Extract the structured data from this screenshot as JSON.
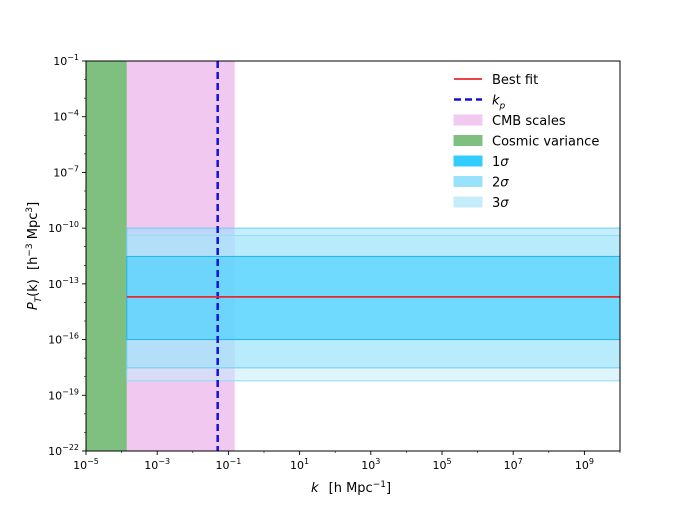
{
  "chart_data": {
    "type": "area",
    "x_scale": "log",
    "y_scale": "log",
    "xlim": [
      1e-05,
      10000000000.0
    ],
    "ylim": [
      1e-22,
      0.1
    ],
    "xlabel_html": "k  (h Mpc⁻¹)",
    "ylabel_html": "P_T(k)  (h⁻³ Mpc³)",
    "xlabel": {
      "main": "k",
      "unit": "[h Mpc",
      "sup": "−1",
      "close": "]"
    },
    "ylabel": {
      "main": "P",
      "sub": "T",
      "arg": "(k)",
      "unit": "[h",
      "sup1": "−3",
      "unit2": " Mpc",
      "sup2": "3",
      "close": "]"
    },
    "x_ticks": [
      {
        "value": 1e-05,
        "base": "10",
        "exp": "−5"
      },
      {
        "value": 0.001,
        "base": "10",
        "exp": "−3"
      },
      {
        "value": 0.1,
        "base": "10",
        "exp": "−1"
      },
      {
        "value": 10.0,
        "base": "10",
        "exp": "1"
      },
      {
        "value": 1000.0,
        "base": "10",
        "exp": "3"
      },
      {
        "value": 100000.0,
        "base": "10",
        "exp": "5"
      },
      {
        "value": 10000000.0,
        "base": "10",
        "exp": "7"
      },
      {
        "value": 1000000000.0,
        "base": "10",
        "exp": "9"
      }
    ],
    "y_ticks": [
      {
        "value": 0.1,
        "base": "10",
        "exp": "−1"
      },
      {
        "value": 0.0001,
        "base": "10",
        "exp": "−4"
      },
      {
        "value": 1e-07,
        "base": "10",
        "exp": "−7"
      },
      {
        "value": 1e-10,
        "base": "10",
        "exp": "−10"
      },
      {
        "value": 1e-13,
        "base": "10",
        "exp": "−13"
      },
      {
        "value": 1e-16,
        "base": "10",
        "exp": "−16"
      },
      {
        "value": 1e-19,
        "base": "10",
        "exp": "−19"
      },
      {
        "value": 1e-22,
        "base": "10",
        "exp": "−22"
      }
    ],
    "regions": {
      "cosmic_variance": {
        "x": [
          1e-05,
          0.00014
        ],
        "color": "#7fbf7f"
      },
      "cmb_scales": {
        "x": [
          0.00014,
          0.15
        ],
        "color": "#f0c8f0"
      }
    },
    "bands": {
      "x_start": 0.00014,
      "sigma3": {
        "y": [
          6e-19,
          4e-11
        ],
        "color": "#c4ecfb"
      },
      "sigma2": {
        "y": [
          3e-18,
          1e-10
        ],
        "color": "#98e2fb"
      },
      "sigma1": {
        "y": [
          1e-16,
          3e-12
        ],
        "color": "#33ccff"
      }
    },
    "best_fit": {
      "y": 2e-14,
      "color": "#e8282c"
    },
    "k_p": {
      "x": 0.05,
      "color": "#1010dd"
    },
    "legend": {
      "position": "top-right",
      "entries": [
        {
          "label": "Best fit",
          "kind": "line",
          "color": "#e8282c"
        },
        {
          "label": "k",
          "sub": "p",
          "kind": "dash",
          "color": "#1010dd"
        },
        {
          "label": "CMB scales",
          "kind": "patch",
          "color": "#f0c8f0"
        },
        {
          "label": "Cosmic variance",
          "kind": "patch",
          "color": "#7fbf7f"
        },
        {
          "label": "1",
          "sigma": "σ",
          "kind": "patch",
          "color": "#33ccff"
        },
        {
          "label": "2",
          "sigma": "σ",
          "kind": "patch",
          "color": "#98e2fb"
        },
        {
          "label": "3",
          "sigma": "σ",
          "kind": "patch",
          "color": "#c4ecfb"
        }
      ]
    }
  }
}
